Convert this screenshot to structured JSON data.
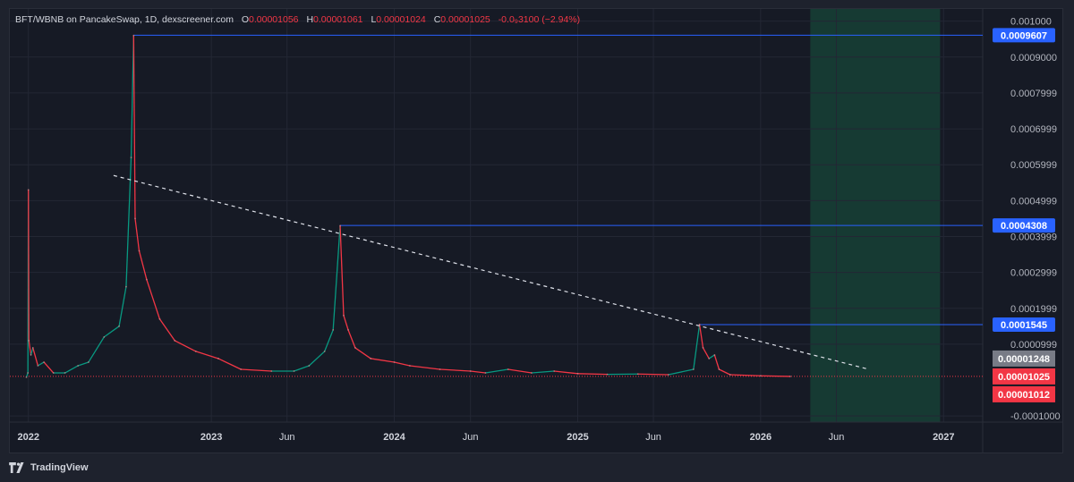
{
  "header": {
    "symbol": "BFT/WBNB on PancakeSwap, 1D, dexscreener.com",
    "open_label": "O",
    "open": "0.00001056",
    "high_label": "H",
    "high": "0.00001061",
    "low_label": "L",
    "low": "0.00001024",
    "close_label": "C",
    "close": "0.00001025",
    "change": "-0.0₉3100 (−2.94%)"
  },
  "footer": {
    "brand": "TradingView"
  },
  "colors": {
    "background": "#161a25",
    "up": "#089981",
    "down": "#f23645",
    "highlight": "#2962ff",
    "projection_zone": "#163a33",
    "trendline": "#e0e3eb"
  },
  "chart_data": {
    "type": "line",
    "title": "",
    "xlabel": "",
    "ylabel": "",
    "x_axis": {
      "type": "date",
      "range": [
        "2021-11-25",
        "2027-03-20"
      ],
      "ticks": [
        {
          "date": "2022-01-01",
          "label": "2022",
          "bold": true
        },
        {
          "date": "2023-01-01",
          "label": "2023",
          "bold": true
        },
        {
          "date": "2023-06-01",
          "label": "Jun",
          "bold": false
        },
        {
          "date": "2024-01-01",
          "label": "2024",
          "bold": true
        },
        {
          "date": "2024-06-01",
          "label": "Jun",
          "bold": false
        },
        {
          "date": "2025-01-01",
          "label": "2025",
          "bold": true
        },
        {
          "date": "2025-06-01",
          "label": "Jun",
          "bold": false
        },
        {
          "date": "2026-01-01",
          "label": "2026",
          "bold": true
        },
        {
          "date": "2026-06-01",
          "label": "Jun",
          "bold": false
        },
        {
          "date": "2027-01-01",
          "label": "2027",
          "bold": true
        }
      ]
    },
    "y_axis": {
      "range": [
        -0.000117,
        0.001034
      ],
      "ticks": [
        {
          "value": 0.001,
          "label": "0.001000"
        },
        {
          "value": 0.0009,
          "label": "0.0009000"
        },
        {
          "value": 0.0008,
          "label": "0.0007999"
        },
        {
          "value": 0.0007,
          "label": "0.0006999"
        },
        {
          "value": 0.0006,
          "label": "0.0005999"
        },
        {
          "value": 0.0005,
          "label": "0.0004999"
        },
        {
          "value": 0.0004,
          "label": "0.0003999"
        },
        {
          "value": 0.0003,
          "label": "0.0002999"
        },
        {
          "value": 0.0002,
          "label": "0.0001999"
        },
        {
          "value": 0.0001,
          "label": "0.0000999"
        },
        {
          "value": -0.0001,
          "label": "-0.0001000"
        }
      ]
    },
    "grid": true,
    "series": [
      {
        "points": [
          [
            "2021-12-28",
            8e-06
          ],
          [
            "2021-12-31",
            2e-05
          ],
          [
            "2022-01-01",
            0.00053
          ],
          [
            "2022-01-02",
            0.00011
          ],
          [
            "2022-01-06",
            7e-05
          ],
          [
            "2022-01-10",
            9e-05
          ],
          [
            "2022-01-20",
            4e-05
          ],
          [
            "2022-02-01",
            5e-05
          ],
          [
            "2022-02-20",
            2e-05
          ],
          [
            "2022-03-15",
            2e-05
          ],
          [
            "2022-04-10",
            4e-05
          ],
          [
            "2022-05-01",
            5e-05
          ],
          [
            "2022-06-01",
            0.00012
          ],
          [
            "2022-07-01",
            0.00015
          ],
          [
            "2022-07-15",
            0.00026
          ],
          [
            "2022-07-25",
            0.00062
          ],
          [
            "2022-07-30",
            0.00096
          ],
          [
            "2022-08-02",
            0.00045
          ],
          [
            "2022-08-10",
            0.00036
          ],
          [
            "2022-08-25",
            0.00028
          ],
          [
            "2022-09-20",
            0.00017
          ],
          [
            "2022-10-20",
            0.00011
          ],
          [
            "2022-12-01",
            8e-05
          ],
          [
            "2023-01-15",
            6e-05
          ],
          [
            "2023-03-01",
            3e-05
          ],
          [
            "2023-05-01",
            2.5e-05
          ],
          [
            "2023-06-15",
            2.5e-05
          ],
          [
            "2023-07-15",
            4e-05
          ],
          [
            "2023-08-15",
            8e-05
          ],
          [
            "2023-09-01",
            0.00014
          ],
          [
            "2023-09-15",
            0.00043
          ],
          [
            "2023-09-22",
            0.00018
          ],
          [
            "2023-10-01",
            0.00014
          ],
          [
            "2023-10-15",
            9e-05
          ],
          [
            "2023-11-15",
            6e-05
          ],
          [
            "2024-01-01",
            5e-05
          ],
          [
            "2024-02-01",
            4e-05
          ],
          [
            "2024-04-01",
            3e-05
          ],
          [
            "2024-06-01",
            2.5e-05
          ],
          [
            "2024-07-01",
            2e-05
          ],
          [
            "2024-08-15",
            3e-05
          ],
          [
            "2024-10-01",
            2e-05
          ],
          [
            "2024-11-15",
            2.5e-05
          ],
          [
            "2025-01-01",
            1.8e-05
          ],
          [
            "2025-03-01",
            1.6e-05
          ],
          [
            "2025-05-01",
            1.7e-05
          ],
          [
            "2025-07-01",
            1.5e-05
          ],
          [
            "2025-08-20",
            3e-05
          ],
          [
            "2025-09-01",
            0.000155
          ],
          [
            "2025-09-08",
            9e-05
          ],
          [
            "2025-09-20",
            6e-05
          ],
          [
            "2025-10-01",
            7e-05
          ],
          [
            "2025-10-10",
            3e-05
          ],
          [
            "2025-11-01",
            1.5e-05
          ],
          [
            "2026-01-01",
            1.2e-05
          ],
          [
            "2026-03-01",
            1.025e-05
          ]
        ]
      }
    ],
    "trendline": {
      "start": [
        "2022-06-20",
        0.00057
      ],
      "end": [
        "2026-08-05",
        3e-05
      ],
      "style": "dashed"
    },
    "horizontal_levels": [
      {
        "value": 0.0009607,
        "label": "0.0009607",
        "from": "2022-07-30"
      },
      {
        "value": 0.0004308,
        "label": "0.0004308",
        "from": "2023-09-15"
      },
      {
        "value": 0.0001545,
        "label": "0.0001545",
        "from": "2025-09-01"
      }
    ],
    "price_labels": [
      {
        "value": 1.248e-05,
        "label": "0.00001248",
        "color": "#787b86"
      },
      {
        "value": 1.025e-05,
        "label": "0.00001025",
        "color": "#f23645"
      },
      {
        "value": 1.012e-05,
        "label": "0.00001012",
        "color": "#f23645"
      }
    ],
    "last_price": 1.025e-05,
    "projection_zone": {
      "from": "2026-04-10",
      "to": "2026-12-25"
    }
  }
}
